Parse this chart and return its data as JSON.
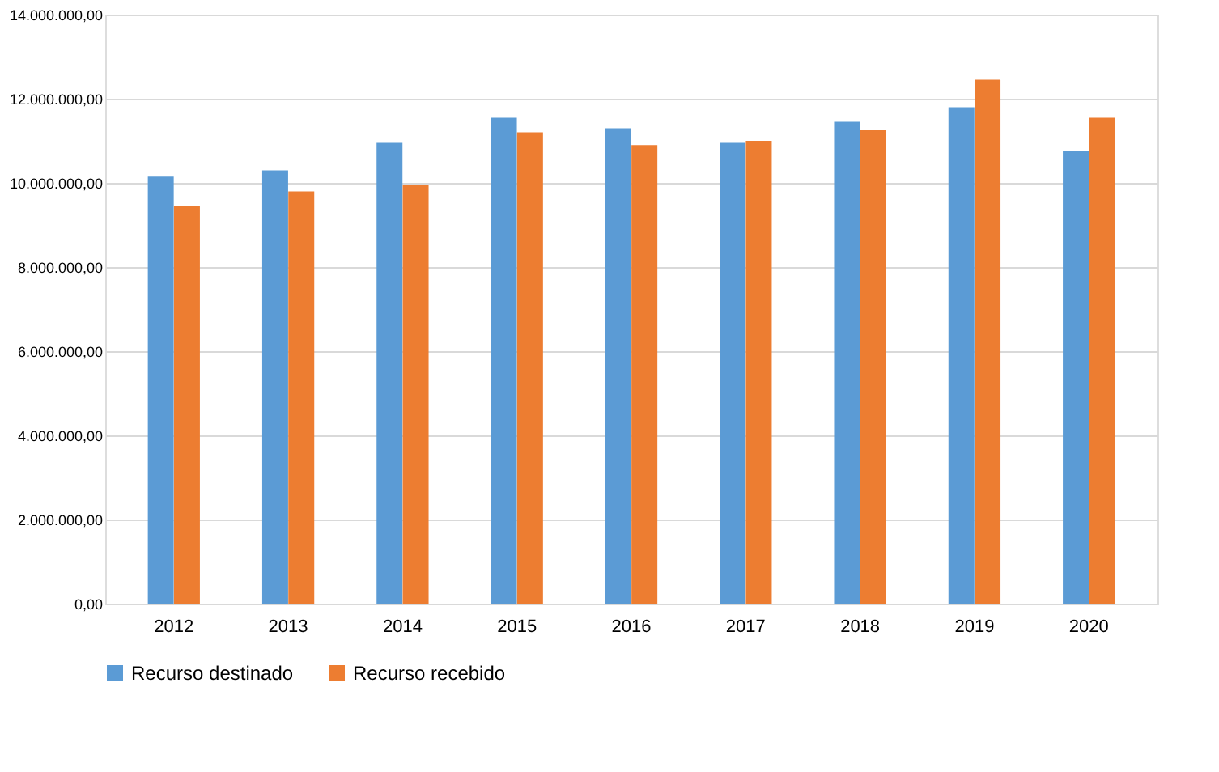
{
  "chart_data": {
    "type": "bar",
    "categories": [
      "2012",
      "2013",
      "2014",
      "2015",
      "2016",
      "2017",
      "2018",
      "2019",
      "2020"
    ],
    "series": [
      {
        "name": "Recurso destinado",
        "color": "#5b9bd5",
        "values": [
          10150000,
          10300000,
          10950000,
          11550000,
          11300000,
          10950000,
          11450000,
          11800000,
          10750000
        ]
      },
      {
        "name": "Recurso recebido",
        "color": "#ed7d31",
        "values": [
          9450000,
          9800000,
          9950000,
          11200000,
          10900000,
          11000000,
          11250000,
          12450000,
          11550000
        ]
      }
    ],
    "ylim": [
      0,
      14000000
    ],
    "yticks": [
      {
        "value": 0,
        "label": "0,00"
      },
      {
        "value": 2000000,
        "label": "2.000.000,00"
      },
      {
        "value": 4000000,
        "label": "4.000.000,00"
      },
      {
        "value": 6000000,
        "label": "6.000.000,00"
      },
      {
        "value": 8000000,
        "label": "8.000.000,00"
      },
      {
        "value": 10000000,
        "label": "10.000.000,00"
      },
      {
        "value": 12000000,
        "label": "12.000.000,00"
      },
      {
        "value": 14000000,
        "label": "14.000.000,00"
      }
    ],
    "grid": "y",
    "legend": "bottom"
  }
}
